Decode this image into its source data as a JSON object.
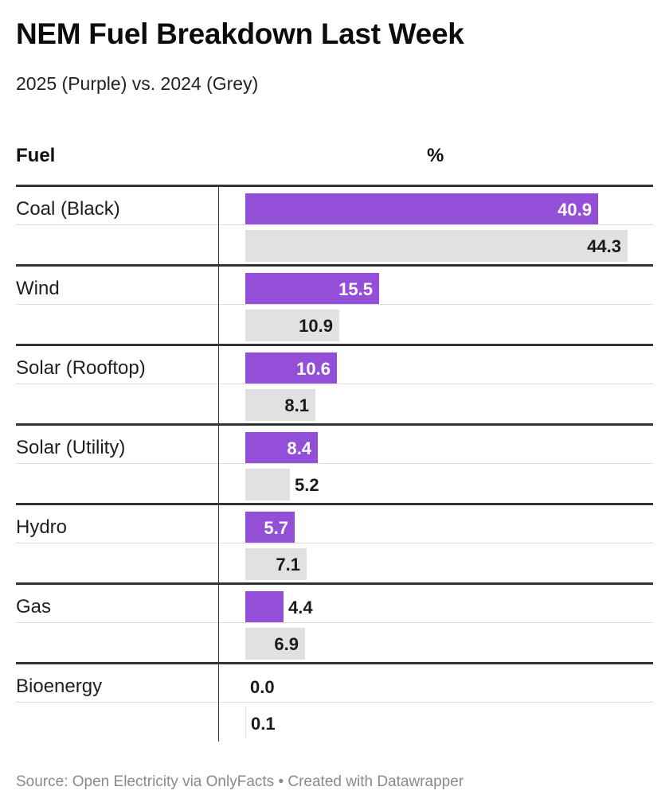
{
  "title": "NEM Fuel Breakdown Last Week",
  "subtitle": "2025 (Purple) vs. 2024 (Grey)",
  "footer": "Source: Open Electricity via OnlyFacts • Created with Datawrapper",
  "colors": {
    "series_2025": "#944fd9",
    "series_2024": "#e1e1e1",
    "divider": "#333333"
  },
  "chart_data": {
    "type": "bar",
    "orientation": "horizontal",
    "columns": [
      "Fuel",
      "%"
    ],
    "categories": [
      "Coal (Black)",
      "Wind",
      "Solar (Rooftop)",
      "Solar (Utility)",
      "Hydro",
      "Gas",
      "Bioenergy"
    ],
    "series": [
      {
        "values": [
          40.9,
          15.5,
          10.6,
          8.4,
          5.7,
          4.4,
          0.0
        ],
        "color": "#944fd9"
      },
      {
        "values": [
          44.3,
          10.9,
          8.1,
          5.2,
          7.1,
          6.9,
          0.1
        ],
        "color": "#e1e1e1"
      }
    ],
    "xlim": [
      0,
      44.3
    ],
    "labels": {
      "series0": [
        "40.9",
        "15.5",
        "10.6",
        "8.4",
        "5.7",
        "4.4",
        "0.0"
      ],
      "series1": [
        "44.3",
        "10.9",
        "8.1",
        "5.2",
        "7.1",
        "6.9",
        "0.1"
      ]
    },
    "grid": false,
    "legend": "none"
  }
}
